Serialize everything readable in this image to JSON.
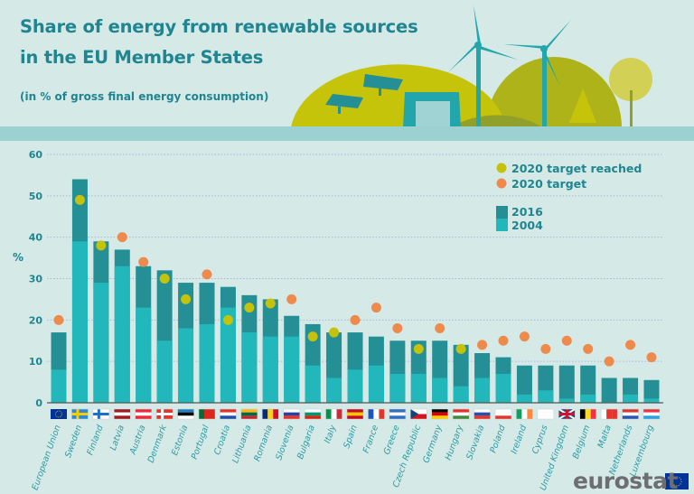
{
  "header": {
    "title_line1": "Share of energy from renewable sources",
    "title_line2": "in the EU Member States",
    "subtitle": "(in % of gross final energy consumption)"
  },
  "logo": {
    "text": "eurostat"
  },
  "colors": {
    "bar_2016": "#258f96",
    "bar_2004": "#22b7ba",
    "target_reached": "#c4c20a",
    "target": "#ef8a4d",
    "text": "#1f8590",
    "background": "#d5e9e7"
  },
  "chart_data": {
    "type": "bar",
    "ylabel": "%",
    "ylim": [
      0,
      60
    ],
    "yticks": [
      0,
      10,
      20,
      30,
      40,
      50,
      60
    ],
    "grid": true,
    "legend_placement": "top-right",
    "legend": {
      "reached": "2020 target reached",
      "target": "2020 target",
      "y2016": "2016",
      "y2004": "2004"
    },
    "categories": [
      "European Union",
      "Sweden",
      "Finland",
      "Latvia",
      "Austria",
      "Denmark",
      "Estonia",
      "Portugal",
      "Croatia",
      "Lithuania",
      "Romania",
      "Slovenia",
      "Bulgaria",
      "Italy",
      "Spain",
      "France",
      "Greece",
      "Czech Republic",
      "Germany",
      "Hungary",
      "Slovakia",
      "Poland",
      "Ireland",
      "Cyprus",
      "United Kingdom",
      "Belgium",
      "Malta",
      "Netherlands",
      "Luxembourg"
    ],
    "series": [
      {
        "name": "2016",
        "values": [
          17,
          54,
          39,
          37,
          33,
          32,
          29,
          29,
          28,
          26,
          25,
          21,
          19,
          17,
          17,
          16,
          15,
          15,
          15,
          14,
          12,
          11,
          9,
          9,
          9,
          9,
          6,
          6,
          5.5
        ]
      },
      {
        "name": "2004",
        "values": [
          8,
          39,
          29,
          33,
          23,
          15,
          18,
          19,
          23,
          17,
          16,
          16,
          9,
          6,
          8,
          9,
          7,
          7,
          6,
          4,
          6,
          7,
          2,
          3,
          1,
          2,
          0.2,
          2,
          1
        ]
      }
    ],
    "target_2020": [
      20,
      49,
      38,
      40,
      34,
      30,
      25,
      31,
      20,
      23,
      24,
      25,
      16,
      17,
      20,
      23,
      18,
      13,
      18,
      13,
      14,
      15,
      16,
      13,
      15,
      13,
      10,
      14,
      11
    ],
    "target_reached": [
      false,
      true,
      true,
      false,
      false,
      true,
      true,
      false,
      true,
      true,
      true,
      false,
      true,
      true,
      false,
      false,
      false,
      true,
      false,
      true,
      false,
      false,
      false,
      false,
      false,
      false,
      false,
      false,
      false
    ]
  },
  "flags": [
    {
      "type": "eu",
      "colors": [
        "#003399",
        "#ffcc00"
      ]
    },
    {
      "type": "cross",
      "colors": [
        "#2a8ad4",
        "#fecc00"
      ]
    },
    {
      "type": "cross",
      "colors": [
        "#ffffff",
        "#1b6fc4"
      ]
    },
    {
      "type": "h",
      "colors": [
        "#9e1b20",
        "#ffffff",
        "#9e1b20"
      ]
    },
    {
      "type": "h",
      "colors": [
        "#ed2939",
        "#ffffff",
        "#ed2939"
      ]
    },
    {
      "type": "cross",
      "colors": [
        "#e4342b",
        "#ffffff"
      ]
    },
    {
      "type": "h",
      "colors": [
        "#1f7fc4",
        "#000000",
        "#ffffff"
      ]
    },
    {
      "type": "v",
      "colors": [
        "#046a38",
        "#da291c",
        "#da291c"
      ]
    },
    {
      "type": "h",
      "colors": [
        "#e4342b",
        "#ffffff",
        "#1f4ea8"
      ]
    },
    {
      "type": "h",
      "colors": [
        "#fdb913",
        "#006a44",
        "#c1272d"
      ]
    },
    {
      "type": "v",
      "colors": [
        "#002b7f",
        "#fcd116",
        "#ce1126"
      ]
    },
    {
      "type": "h",
      "colors": [
        "#ffffff",
        "#2f3f9e",
        "#e4342b"
      ]
    },
    {
      "type": "h",
      "colors": [
        "#ffffff",
        "#00966e",
        "#d62612"
      ]
    },
    {
      "type": "v",
      "colors": [
        "#009246",
        "#ffffff",
        "#ce2b37"
      ]
    },
    {
      "type": "h",
      "colors": [
        "#c60b1e",
        "#ffc400",
        "#c60b1e"
      ]
    },
    {
      "type": "v",
      "colors": [
        "#2154b8",
        "#ffffff",
        "#e4342b"
      ]
    },
    {
      "type": "h",
      "colors": [
        "#2f6fc4",
        "#ffffff",
        "#2f6fc4"
      ]
    },
    {
      "type": "cz",
      "colors": [
        "#ffffff",
        "#d7141a",
        "#11457e"
      ]
    },
    {
      "type": "h",
      "colors": [
        "#000000",
        "#dd0000",
        "#ffce00"
      ]
    },
    {
      "type": "h",
      "colors": [
        "#e4342b",
        "#ffffff",
        "#3d8a3d"
      ]
    },
    {
      "type": "h",
      "colors": [
        "#ffffff",
        "#2b4fa6",
        "#e4342b"
      ]
    },
    {
      "type": "h",
      "colors": [
        "#ffffff",
        "#ffffff",
        "#e4342b"
      ]
    },
    {
      "type": "v",
      "colors": [
        "#169b62",
        "#ffffff",
        "#ff883e"
      ]
    },
    {
      "type": "h",
      "colors": [
        "#ffffff",
        "#ffffff",
        "#ffffff"
      ]
    },
    {
      "type": "uk",
      "colors": [
        "#1f3f8f",
        "#ffffff",
        "#cf142b"
      ]
    },
    {
      "type": "v",
      "colors": [
        "#000000",
        "#fdda24",
        "#ef3340"
      ]
    },
    {
      "type": "v",
      "colors": [
        "#ffffff",
        "#e4342b",
        "#e4342b"
      ]
    },
    {
      "type": "h",
      "colors": [
        "#e4342b",
        "#ffffff",
        "#2b56b0"
      ]
    },
    {
      "type": "h",
      "colors": [
        "#ef3340",
        "#ffffff",
        "#2b9fe0"
      ]
    }
  ]
}
